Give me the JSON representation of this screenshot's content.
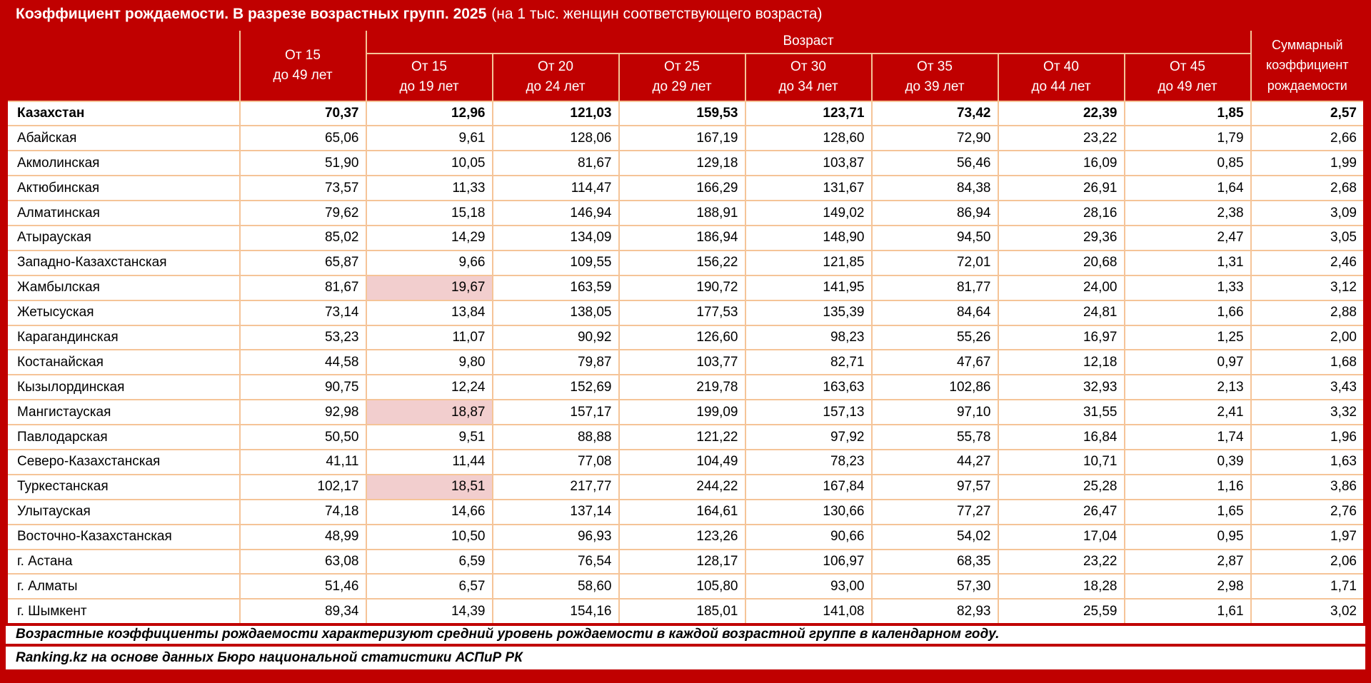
{
  "colors": {
    "accent_red": "#c00000",
    "border_peach": "#f5c498",
    "highlight_pink": "#f2cece",
    "header_text": "#ffffff",
    "body_text": "#000000"
  },
  "chart_data": {
    "type": "table",
    "title": "Коэффициент рождаемости. В разрезе возрастных групп. 2025",
    "title_note": "(на 1 тыс. женщин соответствующего возраста)",
    "columns": {
      "age_label": "Возраст",
      "total": {
        "line1": "От 15",
        "line2": "до 49 лет"
      },
      "age_groups": [
        {
          "line1": "От 15",
          "line2": "до 19 лет"
        },
        {
          "line1": "От 20",
          "line2": "до 24 лет"
        },
        {
          "line1": "От 25",
          "line2": "до 29 лет"
        },
        {
          "line1": "От 30",
          "line2": "до 34 лет"
        },
        {
          "line1": "От 35",
          "line2": "до 39 лет"
        },
        {
          "line1": "От 40",
          "line2": "до 44 лет"
        },
        {
          "line1": "От 45",
          "line2": "до 49 лет"
        }
      ],
      "tfr": {
        "line1": "Суммарный",
        "line2": "коэффициент",
        "line3": "рождаемости"
      }
    },
    "rows": [
      {
        "region": "Казахстан",
        "bold": true,
        "highlight": [],
        "values": [
          "70,37",
          "12,96",
          "121,03",
          "159,53",
          "123,71",
          "73,42",
          "22,39",
          "1,85",
          "2,57"
        ]
      },
      {
        "region": "Абайская",
        "bold": false,
        "highlight": [],
        "values": [
          "65,06",
          "9,61",
          "128,06",
          "167,19",
          "128,60",
          "72,90",
          "23,22",
          "1,79",
          "2,66"
        ]
      },
      {
        "region": "Акмолинская",
        "bold": false,
        "highlight": [],
        "values": [
          "51,90",
          "10,05",
          "81,67",
          "129,18",
          "103,87",
          "56,46",
          "16,09",
          "0,85",
          "1,99"
        ]
      },
      {
        "region": "Актюбинская",
        "bold": false,
        "highlight": [],
        "values": [
          "73,57",
          "11,33",
          "114,47",
          "166,29",
          "131,67",
          "84,38",
          "26,91",
          "1,64",
          "2,68"
        ]
      },
      {
        "region": "Алматинская",
        "bold": false,
        "highlight": [],
        "values": [
          "79,62",
          "15,18",
          "146,94",
          "188,91",
          "149,02",
          "86,94",
          "28,16",
          "2,38",
          "3,09"
        ]
      },
      {
        "region": "Атырауская",
        "bold": false,
        "highlight": [],
        "values": [
          "85,02",
          "14,29",
          "134,09",
          "186,94",
          "148,90",
          "94,50",
          "29,36",
          "2,47",
          "3,05"
        ]
      },
      {
        "region": "Западно-Казахстанская",
        "bold": false,
        "highlight": [],
        "values": [
          "65,87",
          "9,66",
          "109,55",
          "156,22",
          "121,85",
          "72,01",
          "20,68",
          "1,31",
          "2,46"
        ]
      },
      {
        "region": "Жамбылская",
        "bold": false,
        "highlight": [
          1
        ],
        "values": [
          "81,67",
          "19,67",
          "163,59",
          "190,72",
          "141,95",
          "81,77",
          "24,00",
          "1,33",
          "3,12"
        ]
      },
      {
        "region": "Жетысуская",
        "bold": false,
        "highlight": [],
        "values": [
          "73,14",
          "13,84",
          "138,05",
          "177,53",
          "135,39",
          "84,64",
          "24,81",
          "1,66",
          "2,88"
        ]
      },
      {
        "region": "Карагандинская",
        "bold": false,
        "highlight": [],
        "values": [
          "53,23",
          "11,07",
          "90,92",
          "126,60",
          "98,23",
          "55,26",
          "16,97",
          "1,25",
          "2,00"
        ]
      },
      {
        "region": "Костанайская",
        "bold": false,
        "highlight": [],
        "values": [
          "44,58",
          "9,80",
          "79,87",
          "103,77",
          "82,71",
          "47,67",
          "12,18",
          "0,97",
          "1,68"
        ]
      },
      {
        "region": "Кызылординская",
        "bold": false,
        "highlight": [],
        "values": [
          "90,75",
          "12,24",
          "152,69",
          "219,78",
          "163,63",
          "102,86",
          "32,93",
          "2,13",
          "3,43"
        ]
      },
      {
        "region": "Мангистауская",
        "bold": false,
        "highlight": [
          1
        ],
        "values": [
          "92,98",
          "18,87",
          "157,17",
          "199,09",
          "157,13",
          "97,10",
          "31,55",
          "2,41",
          "3,32"
        ]
      },
      {
        "region": "Павлодарская",
        "bold": false,
        "highlight": [],
        "values": [
          "50,50",
          "9,51",
          "88,88",
          "121,22",
          "97,92",
          "55,78",
          "16,84",
          "1,74",
          "1,96"
        ]
      },
      {
        "region": "Северо-Казахстанская",
        "bold": false,
        "highlight": [],
        "values": [
          "41,11",
          "11,44",
          "77,08",
          "104,49",
          "78,23",
          "44,27",
          "10,71",
          "0,39",
          "1,63"
        ]
      },
      {
        "region": "Туркестанская",
        "bold": false,
        "highlight": [
          1
        ],
        "values": [
          "102,17",
          "18,51",
          "217,77",
          "244,22",
          "167,84",
          "97,57",
          "25,28",
          "1,16",
          "3,86"
        ]
      },
      {
        "region": "Улытауская",
        "bold": false,
        "highlight": [],
        "values": [
          "74,18",
          "14,66",
          "137,14",
          "164,61",
          "130,66",
          "77,27",
          "26,47",
          "1,65",
          "2,76"
        ]
      },
      {
        "region": "Восточно-Казахстанская",
        "bold": false,
        "highlight": [],
        "values": [
          "48,99",
          "10,50",
          "96,93",
          "123,26",
          "90,66",
          "54,02",
          "17,04",
          "0,95",
          "1,97"
        ]
      },
      {
        "region": "г. Астана",
        "bold": false,
        "highlight": [],
        "values": [
          "63,08",
          "6,59",
          "76,54",
          "128,17",
          "106,97",
          "68,35",
          "23,22",
          "2,87",
          "2,06"
        ]
      },
      {
        "region": "г. Алматы",
        "bold": false,
        "highlight": [],
        "values": [
          "51,46",
          "6,57",
          "58,60",
          "105,80",
          "93,00",
          "57,30",
          "18,28",
          "2,98",
          "1,71"
        ]
      },
      {
        "region": "г. Шымкент",
        "bold": false,
        "highlight": [],
        "values": [
          "89,34",
          "14,39",
          "154,16",
          "185,01",
          "141,08",
          "82,93",
          "25,59",
          "1,61",
          "3,02"
        ]
      }
    ],
    "footnotes": [
      "Возрастные коэффициенты рождаемости характеризуют средний уровень рождаемости в каждой возрастной группе в календарном году.",
      "Ranking.kz на основе данных Бюро национальной статистики АСПиР РК"
    ]
  }
}
